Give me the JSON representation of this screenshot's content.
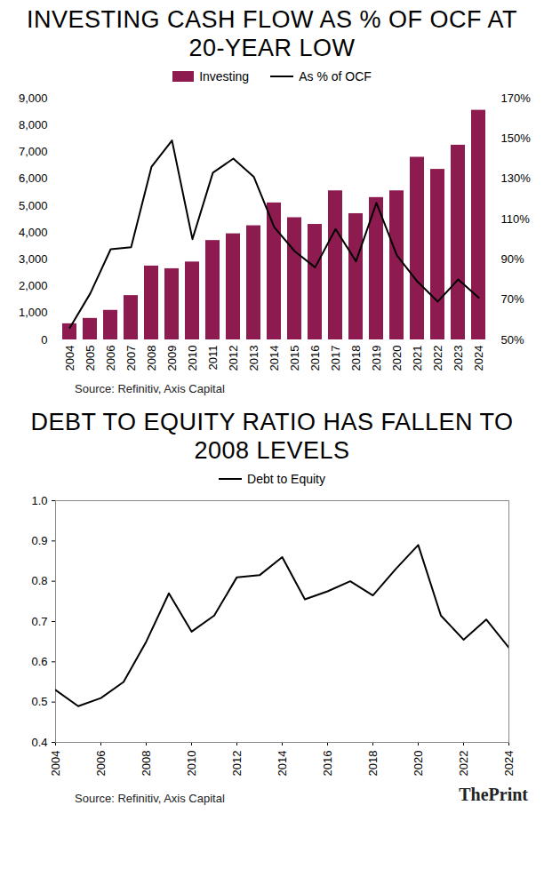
{
  "chart_data": [
    {
      "type": "bar",
      "title": "INVESTING CASH FLOW AS % OF OCF AT 20-YEAR LOW",
      "categories": [
        "2004",
        "2005",
        "2006",
        "2007",
        "2008",
        "2009",
        "2010",
        "2011",
        "2012",
        "2013",
        "2014",
        "2015",
        "2016",
        "2017",
        "2018",
        "2019",
        "2020",
        "2021",
        "2022",
        "2023",
        "2024"
      ],
      "series": [
        {
          "name": "Investing",
          "type": "bar",
          "color": "#8e1b4f",
          "values": [
            600,
            800,
            1100,
            1650,
            2750,
            2650,
            2900,
            3700,
            3950,
            4250,
            5100,
            4550,
            4300,
            5550,
            4700,
            5300,
            5550,
            6800,
            6350,
            7250,
            8550
          ]
        },
        {
          "name": "As % of OCF",
          "type": "line",
          "color": "#000000",
          "axis": "y2",
          "values": [
            56,
            73,
            95,
            96,
            136,
            149,
            100,
            133,
            140,
            131,
            106,
            94,
            86,
            105,
            89,
            118,
            92,
            79,
            69,
            80,
            71
          ]
        }
      ],
      "ylim": [
        0,
        9000
      ],
      "yticks": [
        0,
        {
          "value": 1000,
          "label": "1,000"
        },
        {
          "value": 2000,
          "label": "2,000"
        },
        {
          "value": 3000,
          "label": "3,000"
        },
        {
          "value": 4000,
          "label": "4,000"
        },
        {
          "value": 5000,
          "label": "5,000"
        },
        {
          "value": 6000,
          "label": "6,000"
        },
        {
          "value": 7000,
          "label": "7,000"
        },
        {
          "value": 8000,
          "label": "8,000"
        },
        {
          "value": 9000,
          "label": "9,000"
        }
      ],
      "y2lim": [
        50,
        170
      ],
      "y2ticks": [
        {
          "value": 50,
          "label": "50%"
        },
        {
          "value": 70,
          "label": "70%"
        },
        {
          "value": 90,
          "label": "90%"
        },
        {
          "value": 110,
          "label": "110%"
        },
        {
          "value": 130,
          "label": "130%"
        },
        {
          "value": 150,
          "label": "150%"
        },
        {
          "value": 170,
          "label": "170%"
        }
      ],
      "grid": false,
      "legend": "top",
      "caption": "Source: Refinitiv, Axis Capital"
    },
    {
      "type": "line",
      "title": "DEBT TO EQUITY RATIO HAS FALLEN TO 2008 LEVELS",
      "x": [
        2004,
        2005,
        2006,
        2007,
        2008,
        2009,
        2010,
        2011,
        2012,
        2013,
        2014,
        2015,
        2016,
        2017,
        2018,
        2019,
        2020,
        2021,
        2022,
        2023,
        2024
      ],
      "series": [
        {
          "name": "Debt to Equity",
          "color": "#000000",
          "values": [
            0.53,
            0.49,
            0.51,
            0.55,
            0.65,
            0.77,
            0.675,
            0.715,
            0.81,
            0.815,
            0.86,
            0.755,
            0.775,
            0.8,
            0.765,
            0.83,
            0.89,
            0.715,
            0.655,
            0.705,
            0.635
          ]
        }
      ],
      "xlim": [
        2004,
        2024
      ],
      "xticks": [
        2004,
        2006,
        2008,
        2010,
        2012,
        2014,
        2016,
        2018,
        2020,
        2022,
        2024
      ],
      "ylim": [
        0.4,
        1
      ],
      "yticks": [
        0.4,
        0.5,
        0.6,
        0.7,
        0.8,
        0.9,
        {
          "value": 1,
          "label": "1.0"
        }
      ],
      "grid": false,
      "legend": "top",
      "caption": "Source: Refinitiv, Axis Capital"
    }
  ],
  "footer": {
    "logo": "ThePrint"
  }
}
